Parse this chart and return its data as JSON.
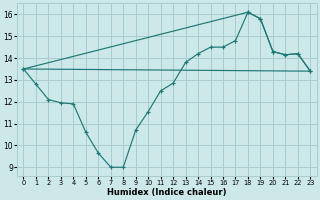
{
  "xlabel": "Humidex (Indice chaleur)",
  "bg_color": "#cce8e8",
  "line_color": "#1f7878",
  "grid_color": "#aacccc",
  "xlim": [
    -0.5,
    23.5
  ],
  "ylim": [
    8.6,
    16.5
  ],
  "xticks": [
    0,
    1,
    2,
    3,
    4,
    5,
    6,
    7,
    8,
    9,
    10,
    11,
    12,
    13,
    14,
    15,
    16,
    17,
    18,
    19,
    20,
    21,
    22,
    23
  ],
  "yticks": [
    9,
    10,
    11,
    12,
    13,
    14,
    15,
    16
  ],
  "line1_x": [
    0,
    1,
    2,
    3,
    4,
    5,
    6,
    7,
    8,
    9,
    10,
    11,
    12,
    13,
    14,
    15,
    16,
    17,
    18,
    19,
    20,
    21,
    22,
    23
  ],
  "line1_y": [
    13.5,
    12.8,
    12.1,
    11.95,
    11.9,
    10.6,
    9.65,
    9.0,
    9.0,
    10.7,
    11.55,
    12.5,
    12.85,
    13.8,
    14.2,
    14.5,
    14.5,
    14.8,
    16.1,
    15.8,
    14.3,
    14.15,
    14.2,
    13.4
  ],
  "line2_x": [
    0,
    18,
    19,
    20,
    21,
    22,
    23
  ],
  "line2_y": [
    13.5,
    16.1,
    15.8,
    14.3,
    14.15,
    14.2,
    13.4
  ],
  "line3_x": [
    0,
    23
  ],
  "line3_y": [
    13.5,
    13.4
  ],
  "line1_markers_x": [
    0,
    1,
    2,
    3,
    4,
    5,
    6,
    7,
    8,
    9,
    10,
    11,
    12,
    13,
    14,
    15,
    16,
    17,
    18,
    19,
    20,
    21,
    22,
    23
  ],
  "line1_markers_y": [
    13.5,
    12.8,
    12.1,
    11.95,
    11.9,
    10.6,
    9.65,
    9.0,
    9.0,
    10.7,
    11.55,
    12.5,
    12.85,
    13.8,
    14.2,
    14.5,
    14.5,
    14.8,
    16.1,
    15.8,
    14.3,
    14.15,
    14.2,
    13.4
  ],
  "line2_markers_x": [
    0,
    18,
    19,
    20,
    21,
    22,
    23
  ],
  "line2_markers_y": [
    13.5,
    16.1,
    15.8,
    14.3,
    14.15,
    14.2,
    13.4
  ]
}
